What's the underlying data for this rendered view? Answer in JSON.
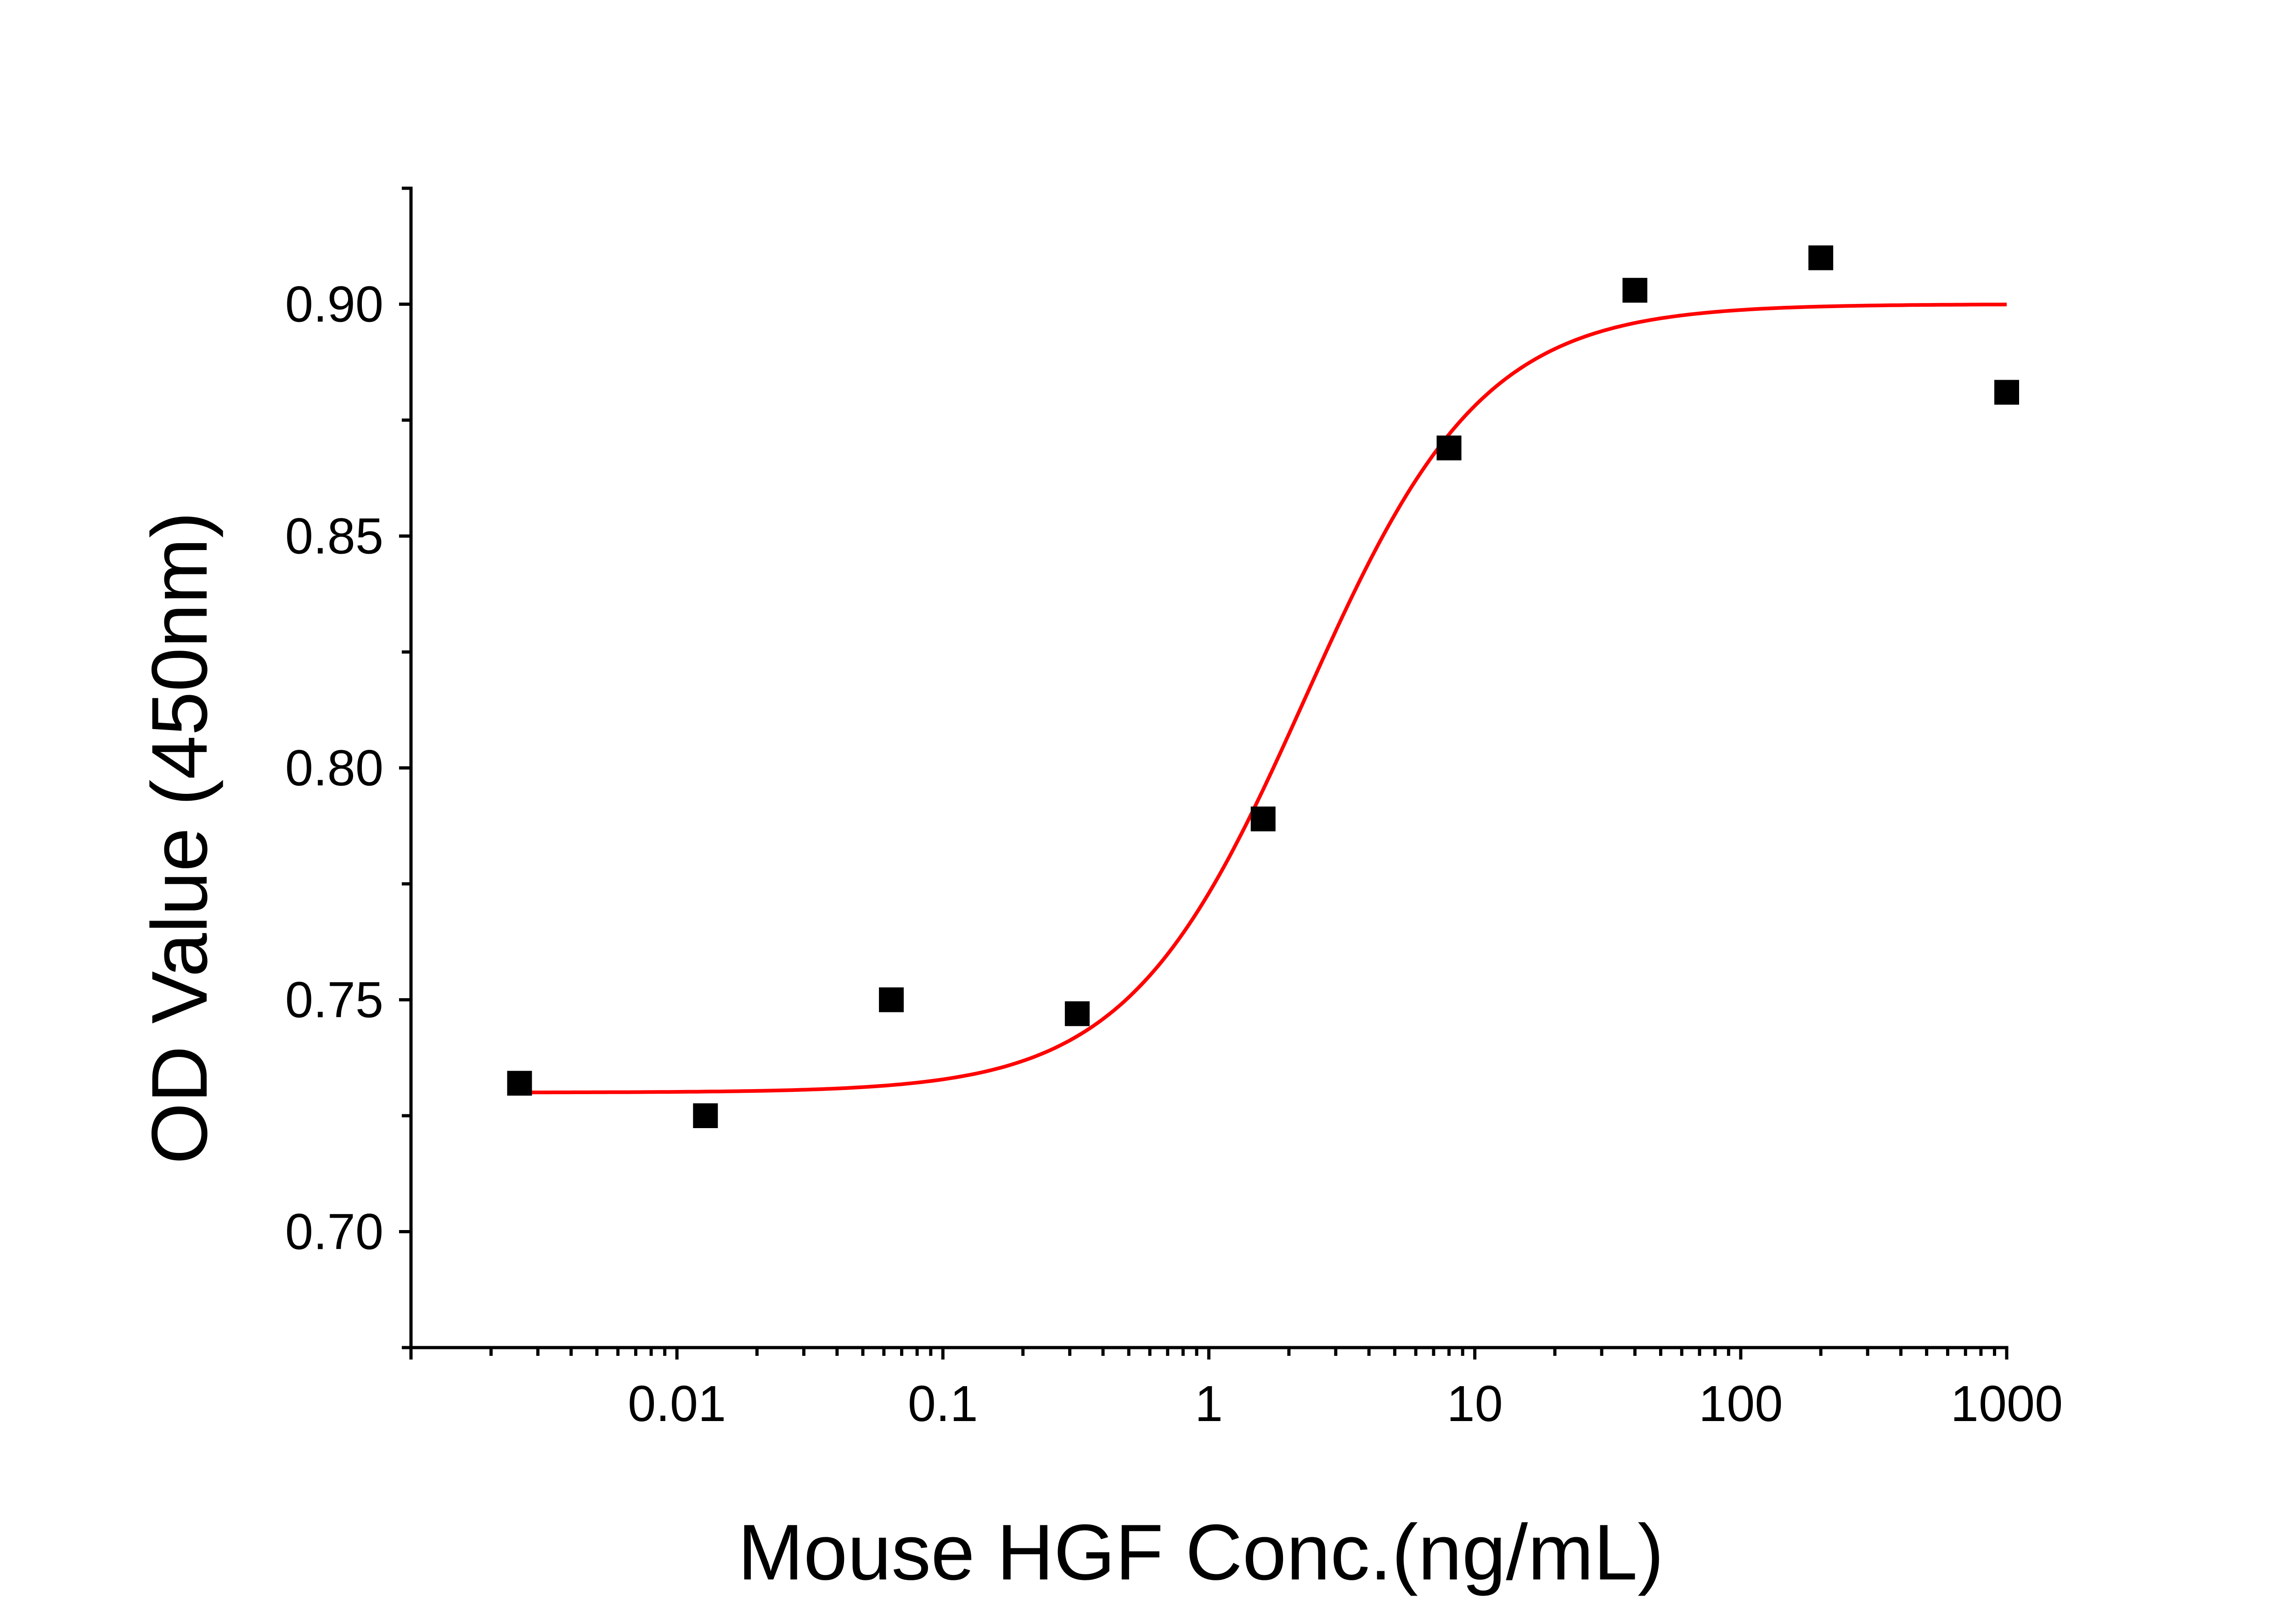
{
  "chart_data": {
    "type": "scatter",
    "title": "",
    "xlabel": "Mouse HGF Conc.(ng/mL)",
    "ylabel": "OD Value (450nm)",
    "xscale": "log",
    "xlim": [
      0.001,
      1000
    ],
    "ylim": [
      0.675,
      0.925
    ],
    "grid": false,
    "legend": "none",
    "x_ticks": [
      {
        "value": 0.01,
        "label": "0.01"
      },
      {
        "value": 0.1,
        "label": "0.1"
      },
      {
        "value": 1,
        "label": "1"
      },
      {
        "value": 10,
        "label": "10"
      },
      {
        "value": 100,
        "label": "100"
      },
      {
        "value": 1000,
        "label": "1000"
      }
    ],
    "y_ticks": [
      {
        "value": 0.7,
        "label": "0.70"
      },
      {
        "value": 0.75,
        "label": "0.75"
      },
      {
        "value": 0.8,
        "label": "0.80"
      },
      {
        "value": 0.85,
        "label": "0.85"
      },
      {
        "value": 0.9,
        "label": "0.90"
      }
    ],
    "series": [
      {
        "kind": "points",
        "marker": "square",
        "color": "#000000",
        "x": [
          0.00256,
          0.0128,
          0.064,
          0.32,
          1.6,
          8,
          40,
          200,
          1000
        ],
        "y": [
          0.732,
          0.725,
          0.75,
          0.747,
          0.789,
          0.869,
          0.903,
          0.91,
          0.881
        ]
      },
      {
        "kind": "fit",
        "color": "#ff0000",
        "model": "4PL",
        "params": {
          "bottom": 0.73,
          "top": 0.9,
          "ec50": 2.3,
          "hill": 1.3
        },
        "x_range": [
          0.00256,
          1000
        ]
      }
    ]
  }
}
